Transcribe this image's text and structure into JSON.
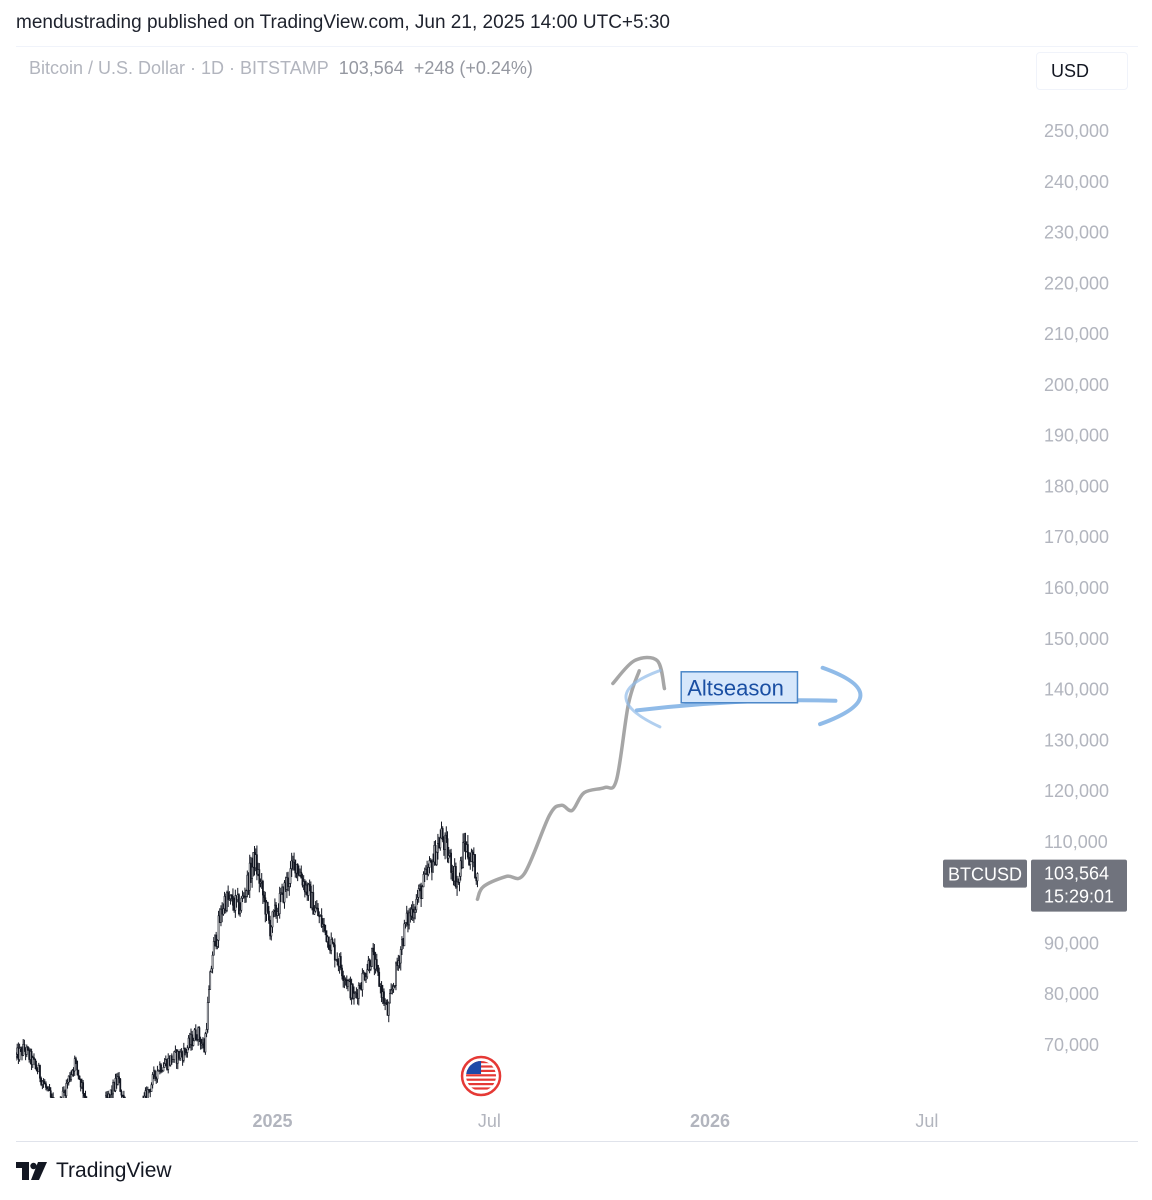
{
  "header": {
    "text": "mendustrading published on TradingView.com, Jun 21, 2025 14:00 UTC+5:30"
  },
  "symbol": {
    "name": "Bitcoin / U.S. Dollar · 1D · BITSTAMP",
    "price": "103,564",
    "change": "+248 (+0.24%)"
  },
  "currency_button": {
    "label": "USD"
  },
  "footer": {
    "brand": "TradingView"
  },
  "colors": {
    "candle": "#131722",
    "drawing_gray": "#a6a6a6",
    "drawing_blue": "#90bbe8",
    "label_bg": "#d6e7fb",
    "label_border": "#2962ff",
    "label_text": "#1a4fa3",
    "axis_text": "#b2b5be",
    "price_tag": "#70737d"
  },
  "icons": {
    "event_marker": "us-flag-icon",
    "brand_logo": "tradingview-logo-icon"
  },
  "chart_data": {
    "type": "candlestick",
    "symbol": "BTCUSD",
    "interval": "1D",
    "y_ticks": [
      250000,
      240000,
      230000,
      220000,
      210000,
      200000,
      190000,
      180000,
      170000,
      160000,
      150000,
      140000,
      130000,
      120000,
      110000,
      90000,
      80000,
      70000
    ],
    "y_tick_labels": [
      "250,000",
      "240,000",
      "230,000",
      "220,000",
      "210,000",
      "200,000",
      "190,000",
      "180,000",
      "170,000",
      "160,000",
      "150,000",
      "140,000",
      "130,000",
      "120,000",
      "110,000",
      "90,000",
      "80,000",
      "70,000"
    ],
    "ylim": [
      62000,
      256000
    ],
    "x_range": [
      "2024-06-01",
      "2026-09-25"
    ],
    "x_ticks": [
      {
        "date": "2025-01-01",
        "label": "2025",
        "major": true
      },
      {
        "date": "2025-07-01",
        "label": "Jul",
        "major": false
      },
      {
        "date": "2026-01-01",
        "label": "2026",
        "major": true
      },
      {
        "date": "2026-07-01",
        "label": "Jul",
        "major": false
      }
    ],
    "price_path": [
      {
        "date": "2024-06-01",
        "value": 67500
      },
      {
        "date": "2024-06-08",
        "value": 69000
      },
      {
        "date": "2024-06-20",
        "value": 64500
      },
      {
        "date": "2024-07-05",
        "value": 56500
      },
      {
        "date": "2024-07-20",
        "value": 66500
      },
      {
        "date": "2024-08-05",
        "value": 54000
      },
      {
        "date": "2024-08-25",
        "value": 63000
      },
      {
        "date": "2024-09-06",
        "value": 53500
      },
      {
        "date": "2024-09-28",
        "value": 65500
      },
      {
        "date": "2024-10-20",
        "value": 68500
      },
      {
        "date": "2024-10-30",
        "value": 72500
      },
      {
        "date": "2024-11-05",
        "value": 69000
      },
      {
        "date": "2024-11-12",
        "value": 88000
      },
      {
        "date": "2024-11-22",
        "value": 98500
      },
      {
        "date": "2024-12-05",
        "value": 97000
      },
      {
        "date": "2024-12-17",
        "value": 106500
      },
      {
        "date": "2024-12-30",
        "value": 93000
      },
      {
        "date": "2025-01-20",
        "value": 106000
      },
      {
        "date": "2025-02-03",
        "value": 98000
      },
      {
        "date": "2025-02-25",
        "value": 86500
      },
      {
        "date": "2025-03-10",
        "value": 79000
      },
      {
        "date": "2025-03-25",
        "value": 87500
      },
      {
        "date": "2025-04-07",
        "value": 76000
      },
      {
        "date": "2025-04-22",
        "value": 93500
      },
      {
        "date": "2025-05-09",
        "value": 102500
      },
      {
        "date": "2025-05-22",
        "value": 111000
      },
      {
        "date": "2025-06-05",
        "value": 101500
      },
      {
        "date": "2025-06-10",
        "value": 109500
      },
      {
        "date": "2025-06-21",
        "value": 103564
      }
    ],
    "last_price": {
      "symbol": "BTCUSD",
      "value": 103564,
      "label": "103,564",
      "countdown": "15:29:01"
    },
    "events": [
      {
        "date": "2025-06-24",
        "icon": "us-flag-icon"
      }
    ],
    "drawings": {
      "projection_path": [
        {
          "date": "2025-06-21",
          "value": 98500
        },
        {
          "date": "2025-06-26",
          "value": 101000
        },
        {
          "date": "2025-07-15",
          "value": 103000
        },
        {
          "date": "2025-07-30",
          "value": 103500
        },
        {
          "date": "2025-08-20",
          "value": 115000
        },
        {
          "date": "2025-08-30",
          "value": 117000
        },
        {
          "date": "2025-09-08",
          "value": 116000
        },
        {
          "date": "2025-09-18",
          "value": 119500
        },
        {
          "date": "2025-10-05",
          "value": 120500
        },
        {
          "date": "2025-10-15",
          "value": 122000
        },
        {
          "date": "2025-10-25",
          "value": 137000
        },
        {
          "date": "2025-11-03",
          "value": 143500
        }
      ],
      "top_arc": [
        {
          "date": "2025-10-12",
          "value": 141000
        },
        {
          "date": "2025-10-30",
          "value": 145500
        },
        {
          "date": "2025-11-18",
          "value": 145500
        },
        {
          "date": "2025-11-24",
          "value": 140000
        }
      ],
      "annotation": {
        "text": "Altseason",
        "date_start": "2025-12-08",
        "date_end": "2026-03-15",
        "value_low": 137200,
        "value_high": 143300
      }
    }
  }
}
